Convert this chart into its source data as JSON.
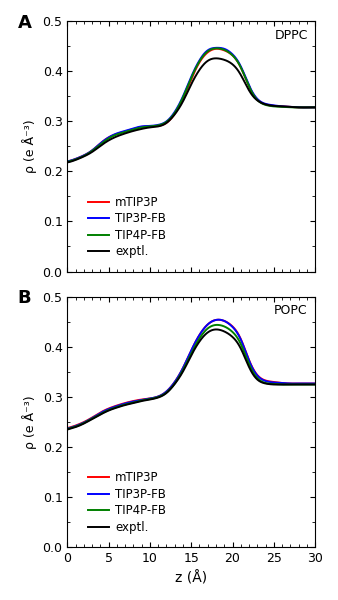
{
  "title_A": "DPPC",
  "title_B": "POPC",
  "label_A": "A",
  "label_B": "B",
  "xlabel": "z (Å)",
  "ylabel": "ρ (e Å⁻³)",
  "xlim": [
    0,
    30
  ],
  "ylim": [
    0,
    0.5
  ],
  "xticks": [
    0,
    5,
    10,
    15,
    20,
    25,
    30
  ],
  "yticks": [
    0,
    0.1,
    0.2,
    0.3,
    0.4,
    0.5
  ],
  "legend_labels": [
    "mTIP3P",
    "TIP3P-FB",
    "TIP4P-FB",
    "exptl."
  ],
  "line_colors": [
    "red",
    "blue",
    "green",
    "black"
  ],
  "line_width": 1.4,
  "dppc": {
    "z": [
      0,
      1,
      2,
      3,
      4,
      5,
      6,
      7,
      8,
      9,
      10,
      11,
      12,
      13,
      14,
      15,
      16,
      17,
      18,
      19,
      20,
      21,
      22,
      23,
      24,
      25,
      26,
      27,
      28,
      29,
      30
    ],
    "mTIP3P": [
      0.22,
      0.225,
      0.232,
      0.242,
      0.256,
      0.268,
      0.275,
      0.28,
      0.285,
      0.289,
      0.29,
      0.291,
      0.297,
      0.315,
      0.345,
      0.384,
      0.418,
      0.438,
      0.445,
      0.442,
      0.432,
      0.408,
      0.37,
      0.344,
      0.334,
      0.331,
      0.33,
      0.329,
      0.328,
      0.328,
      0.328
    ],
    "TIP3P_FB": [
      0.22,
      0.225,
      0.232,
      0.242,
      0.256,
      0.268,
      0.276,
      0.281,
      0.286,
      0.29,
      0.291,
      0.293,
      0.3,
      0.319,
      0.35,
      0.389,
      0.422,
      0.442,
      0.447,
      0.445,
      0.434,
      0.41,
      0.372,
      0.345,
      0.335,
      0.332,
      0.33,
      0.329,
      0.328,
      0.328,
      0.328
    ],
    "TIP4P_FB": [
      0.219,
      0.224,
      0.231,
      0.241,
      0.254,
      0.266,
      0.274,
      0.279,
      0.284,
      0.288,
      0.29,
      0.292,
      0.299,
      0.317,
      0.348,
      0.387,
      0.42,
      0.44,
      0.446,
      0.443,
      0.432,
      0.408,
      0.37,
      0.343,
      0.333,
      0.33,
      0.329,
      0.328,
      0.328,
      0.328,
      0.328
    ],
    "exptl": [
      0.218,
      0.223,
      0.23,
      0.239,
      0.251,
      0.262,
      0.27,
      0.276,
      0.281,
      0.285,
      0.288,
      0.29,
      0.297,
      0.314,
      0.34,
      0.374,
      0.403,
      0.421,
      0.426,
      0.423,
      0.414,
      0.393,
      0.362,
      0.342,
      0.334,
      0.331,
      0.33,
      0.329,
      0.328,
      0.328,
      0.328
    ]
  },
  "popc": {
    "z": [
      0,
      1,
      2,
      3,
      4,
      5,
      6,
      7,
      8,
      9,
      10,
      11,
      12,
      13,
      14,
      15,
      16,
      17,
      18,
      19,
      20,
      21,
      22,
      23,
      24,
      25,
      26,
      27,
      28,
      29,
      30
    ],
    "mTIP3P": [
      0.238,
      0.243,
      0.25,
      0.259,
      0.269,
      0.277,
      0.283,
      0.288,
      0.292,
      0.295,
      0.297,
      0.301,
      0.311,
      0.33,
      0.358,
      0.393,
      0.424,
      0.445,
      0.454,
      0.452,
      0.441,
      0.416,
      0.374,
      0.344,
      0.333,
      0.33,
      0.328,
      0.327,
      0.327,
      0.327,
      0.327
    ],
    "TIP3P_FB": [
      0.237,
      0.242,
      0.249,
      0.258,
      0.268,
      0.276,
      0.282,
      0.287,
      0.291,
      0.294,
      0.297,
      0.301,
      0.311,
      0.33,
      0.358,
      0.393,
      0.424,
      0.445,
      0.454,
      0.452,
      0.44,
      0.415,
      0.373,
      0.343,
      0.332,
      0.329,
      0.328,
      0.327,
      0.327,
      0.327,
      0.327
    ],
    "TIP4P_FB": [
      0.236,
      0.241,
      0.248,
      0.257,
      0.266,
      0.274,
      0.28,
      0.285,
      0.289,
      0.293,
      0.296,
      0.3,
      0.309,
      0.327,
      0.354,
      0.387,
      0.417,
      0.437,
      0.444,
      0.441,
      0.43,
      0.406,
      0.366,
      0.338,
      0.328,
      0.326,
      0.325,
      0.325,
      0.325,
      0.325,
      0.325
    ],
    "exptl": [
      0.235,
      0.24,
      0.247,
      0.256,
      0.265,
      0.273,
      0.279,
      0.284,
      0.288,
      0.292,
      0.295,
      0.299,
      0.308,
      0.326,
      0.351,
      0.383,
      0.411,
      0.429,
      0.435,
      0.431,
      0.42,
      0.397,
      0.36,
      0.335,
      0.327,
      0.325,
      0.325,
      0.325,
      0.325,
      0.325,
      0.325
    ]
  },
  "background_color": "white",
  "tick_direction": "in",
  "font_size": 9,
  "legend_font_size": 8.5,
  "panel_label_fontsize": 13
}
